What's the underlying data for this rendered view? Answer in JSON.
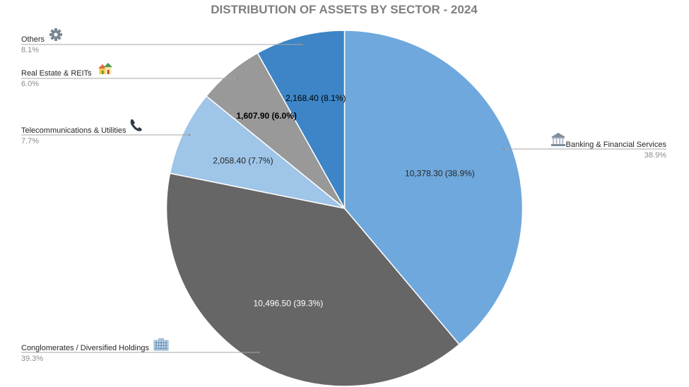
{
  "chart_data": {
    "type": "pie",
    "title": "DISTRIBUTION OF ASSETS  BY SECTOR - 2024",
    "slices": [
      {
        "name": "Banking & Financial Services",
        "value": 10378.3,
        "value_label": "10,378.30 (38.9%)",
        "percent_label": "38.9%",
        "color": "#6fa8dc",
        "label_color": "#262626",
        "icon": "bank-icon"
      },
      {
        "name": "Conglomerates / Diversified Holdings",
        "value": 10496.5,
        "value_label": "10,496.50 (39.3%)",
        "percent_label": "39.3%",
        "color": "#666666",
        "label_color": "#ffffff",
        "icon": "office-building-icon"
      },
      {
        "name": "Telecommunications & Utilities",
        "value": 2058.4,
        "value_label": "2,058.40 (7.7%)",
        "percent_label": "7.7%",
        "color": "#9fc5e8",
        "label_color": "#262626",
        "icon": "phone-icon"
      },
      {
        "name": "Real Estate & REITs",
        "value": 1607.9,
        "value_label": "1,607.90 (6.0%)",
        "percent_label": "6.0%",
        "color": "#999999",
        "label_color": "#000000",
        "icon": "houses-icon"
      },
      {
        "name": "Others",
        "value": 2168.4,
        "value_label": "2,168.40 (8.1%)",
        "percent_label": "8.1%",
        "color": "#3d85c6",
        "label_color": "#000000",
        "icon": "gear-icon"
      }
    ]
  }
}
